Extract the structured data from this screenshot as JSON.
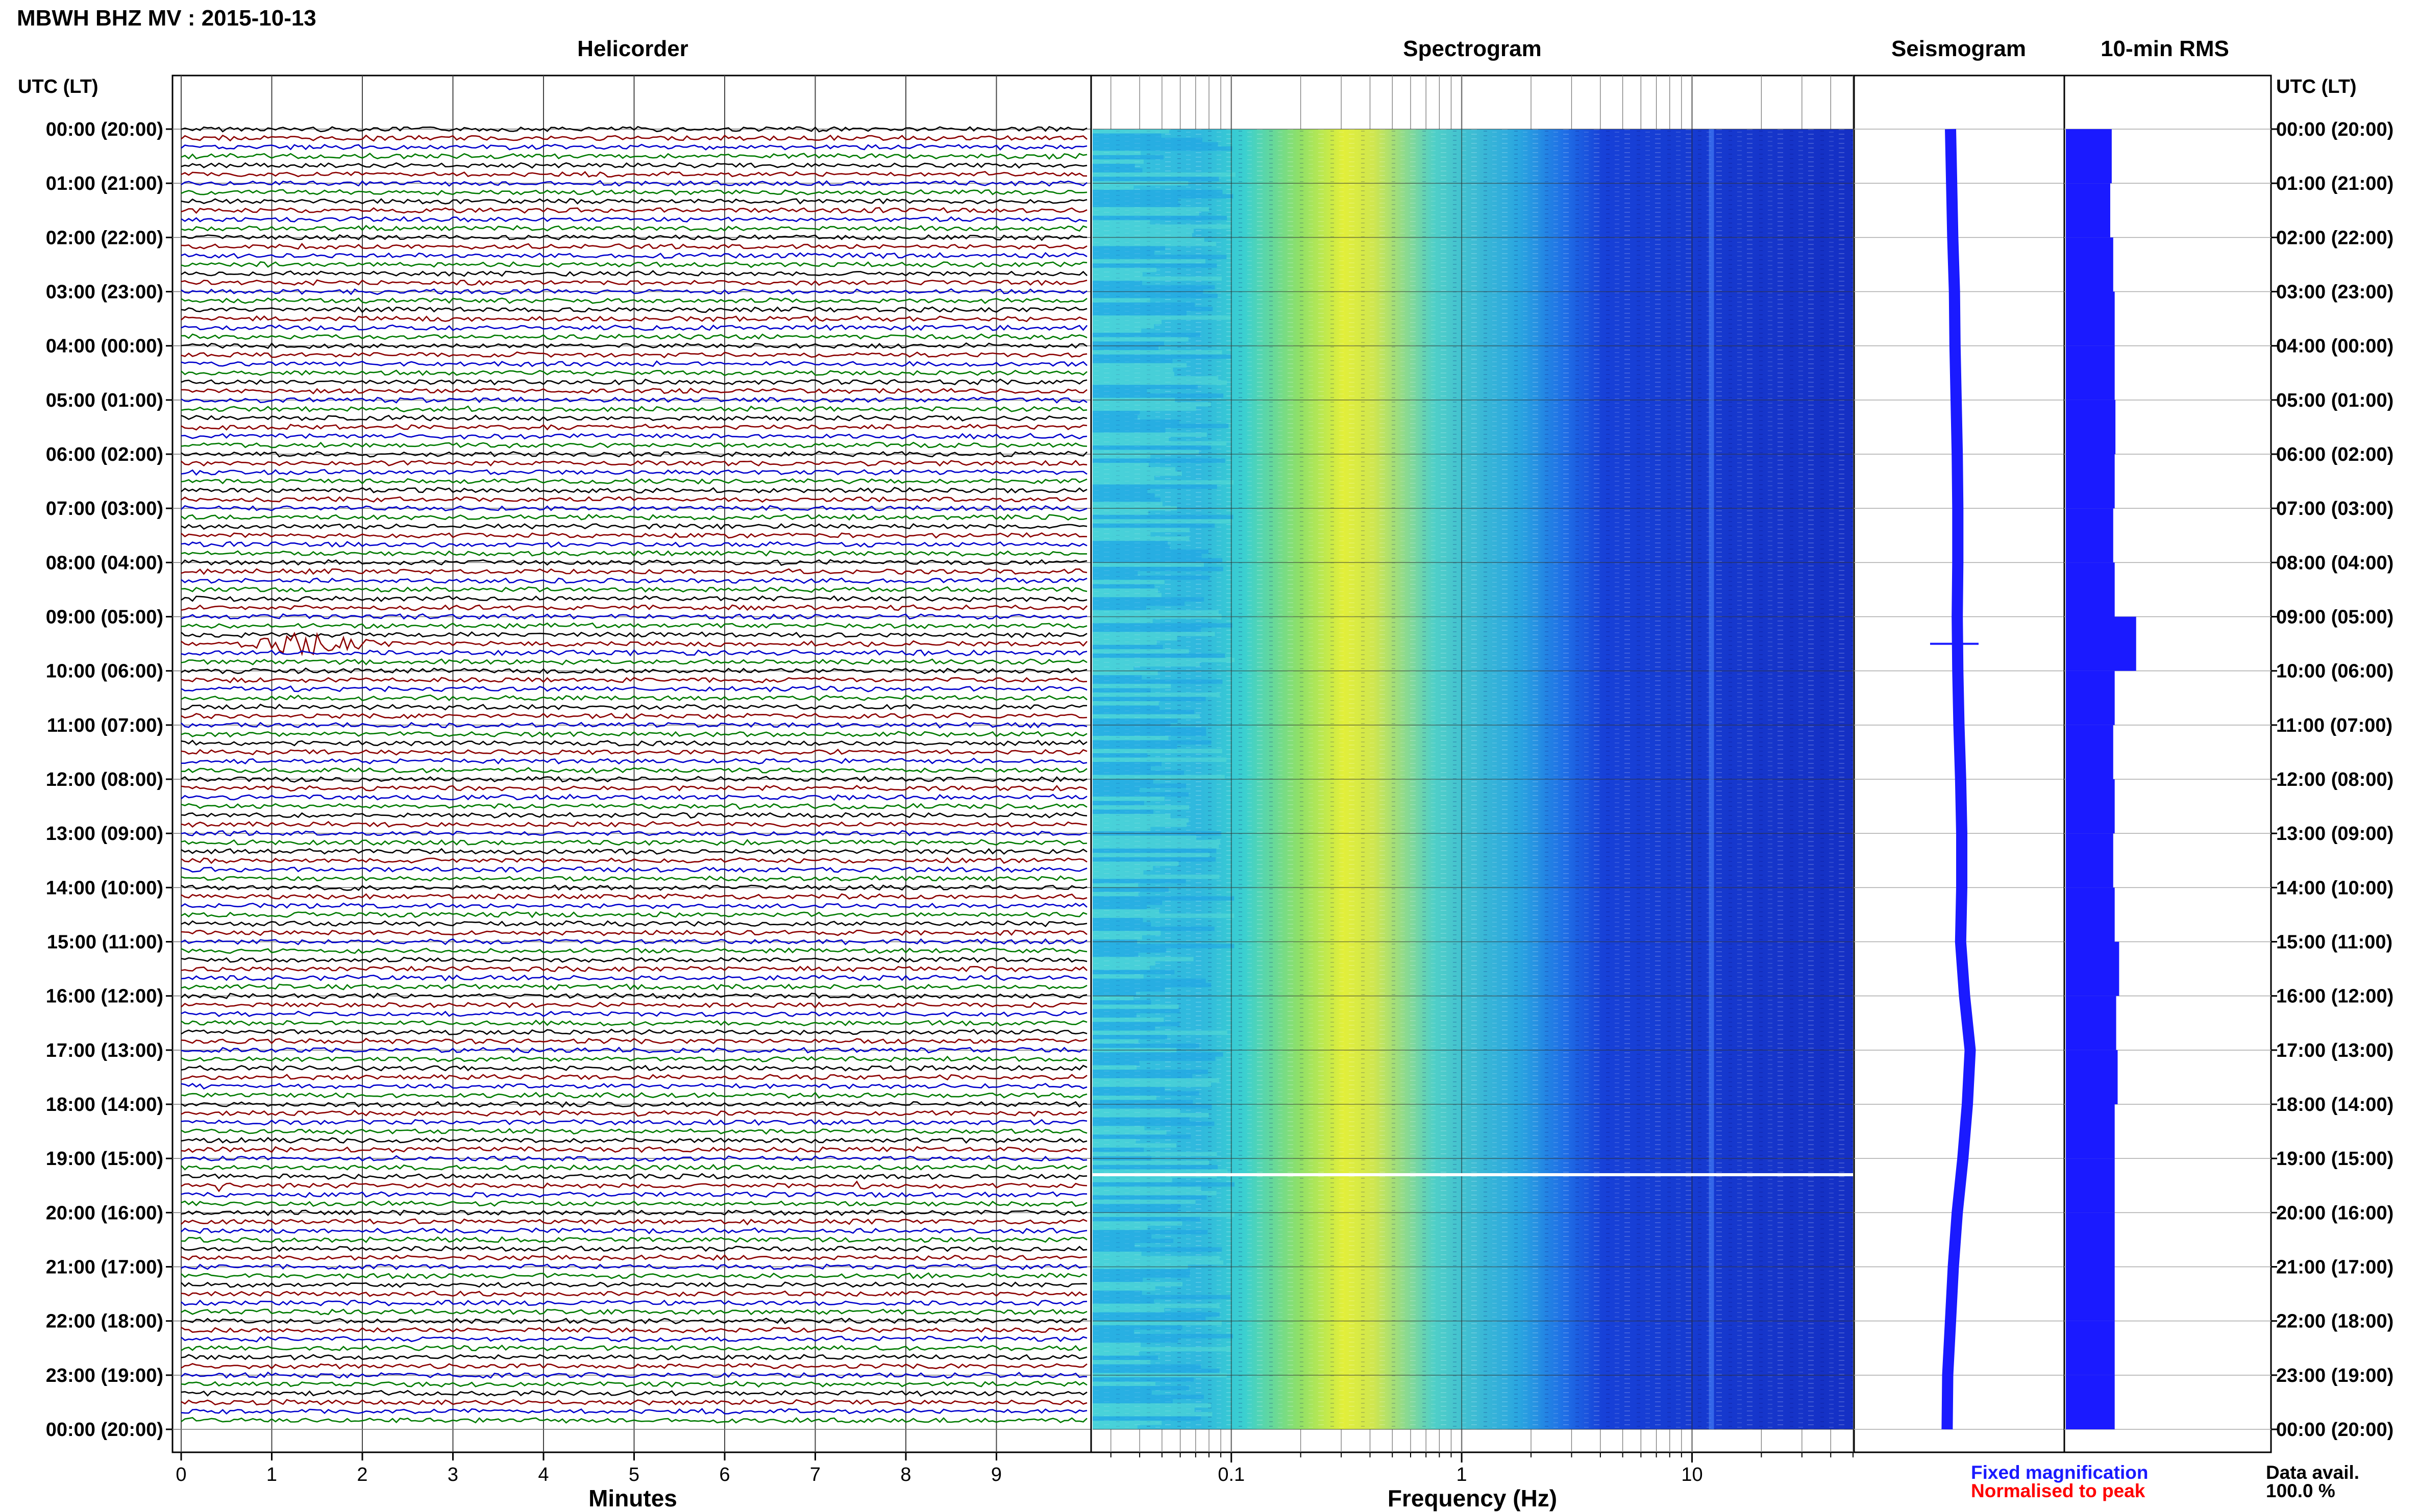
{
  "header": {
    "title": "MBWH BHZ MV : 2015-10-13"
  },
  "labels": {
    "utc_lt_left": "UTC (LT)",
    "utc_lt_right": "UTC (LT)"
  },
  "panels": {
    "helicorder": {
      "title": "Helicorder",
      "xlabel": "Minutes"
    },
    "spectrogram": {
      "title": "Spectrogram",
      "xlabel": "Frequency (Hz)"
    },
    "seismogram": {
      "title": "Seismogram"
    },
    "rms": {
      "title": "10-min RMS"
    }
  },
  "footer": {
    "fixed": "Fixed magnification",
    "normalised": "Normalised to peak",
    "avail_label": "Data avail.",
    "avail_value": "100.0 %"
  },
  "colors": {
    "black": "#000000",
    "red": "#8b0000",
    "blue": "#0000cc",
    "green": "#007a00",
    "rms": "#1a1aff",
    "seismo": "#1a1aff"
  },
  "chart_data": [
    {
      "type": "line",
      "panel": "Helicorder",
      "xlabel": "Minutes",
      "xticks": [
        0,
        1,
        2,
        3,
        4,
        5,
        6,
        7,
        8,
        9
      ],
      "xlim": [
        0,
        10
      ],
      "row_labels": [
        "00:00 (20:00)",
        "01:00 (21:00)",
        "02:00 (22:00)",
        "03:00 (23:00)",
        "04:00 (00:00)",
        "05:00 (01:00)",
        "06:00 (02:00)",
        "07:00 (03:00)",
        "08:00 (04:00)",
        "09:00 (05:00)",
        "10:00 (06:00)",
        "11:00 (07:00)",
        "12:00 (08:00)",
        "13:00 (09:00)",
        "14:00 (10:00)",
        "15:00 (11:00)",
        "16:00 (12:00)",
        "17:00 (13:00)",
        "18:00 (14:00)",
        "19:00 (15:00)",
        "20:00 (16:00)",
        "21:00 (17:00)",
        "22:00 (18:00)",
        "23:00 (19:00)",
        "00:00 (20:00)"
      ],
      "traces_per_hour": 6,
      "trace_colors": [
        "black",
        "red",
        "blue",
        "green"
      ],
      "events": [
        {
          "trace_index": 57,
          "start_min": 0.6,
          "end_min": 2.2,
          "amplitude": "large"
        },
        {
          "trace_index": 117,
          "start_min": 0.3,
          "end_min": 0.5,
          "amplitude": "small"
        },
        {
          "trace_index": 117,
          "start_min": 7.4,
          "end_min": 7.6,
          "amplitude": "small"
        }
      ]
    },
    {
      "type": "heatmap",
      "panel": "Spectrogram",
      "xlabel": "Frequency (Hz)",
      "xscale": "log",
      "xlim": [
        0.025,
        50
      ],
      "xticks": [
        0.1,
        1,
        10
      ],
      "xtick_labels": [
        "0.1",
        "1",
        "10"
      ],
      "peak_band_hz": [
        0.2,
        0.5
      ],
      "persistent_line_hz": 10,
      "gap_hour": 19.3
    },
    {
      "type": "line",
      "panel": "Seismogram",
      "description_values": "long-period trace drift",
      "x": [
        0,
        1,
        2,
        3,
        4,
        5,
        6,
        7,
        8,
        9,
        10,
        11,
        12,
        13,
        14,
        15,
        16,
        17,
        18,
        19,
        20,
        21,
        22,
        23,
        24
      ],
      "y": [
        0,
        0.02,
        0.04,
        0.07,
        0.08,
        0.1,
        0.12,
        0.13,
        0.13,
        0.12,
        0.13,
        0.15,
        0.18,
        0.2,
        0.2,
        0.18,
        0.25,
        0.35,
        0.3,
        0.22,
        0.12,
        0.05,
        0.0,
        -0.05,
        -0.06
      ]
    },
    {
      "type": "bar",
      "panel": "10-min RMS",
      "orientation": "horizontal",
      "categories_hours": [
        0,
        1,
        2,
        3,
        4,
        5,
        6,
        7,
        8,
        9,
        10,
        11,
        12,
        13,
        14,
        15,
        16,
        17,
        18,
        19,
        20,
        21,
        22,
        23
      ],
      "values": [
        0.62,
        0.6,
        0.64,
        0.66,
        0.66,
        0.67,
        0.66,
        0.64,
        0.66,
        0.95,
        0.66,
        0.64,
        0.66,
        0.64,
        0.66,
        0.72,
        0.68,
        0.7,
        0.66,
        0.66,
        0.66,
        0.66,
        0.66,
        0.66
      ],
      "peak_value": 1.0,
      "peak_hour": 9.5
    }
  ]
}
